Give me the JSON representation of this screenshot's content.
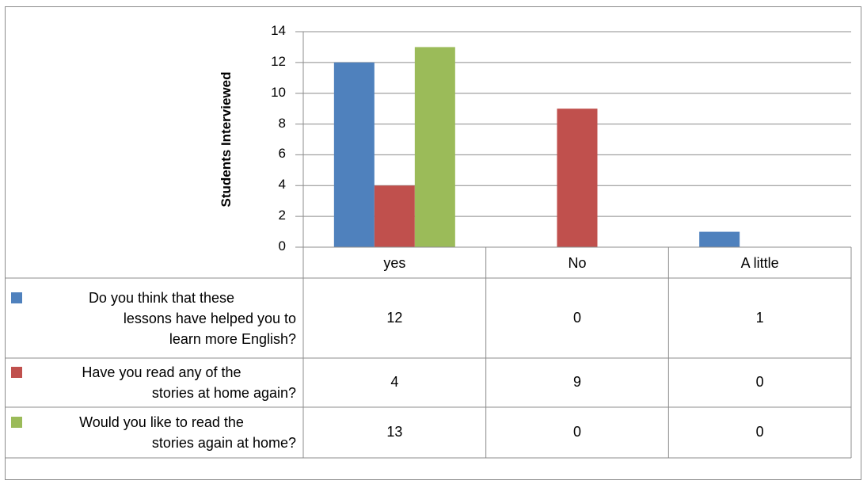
{
  "chart_data": {
    "type": "bar",
    "ylabel": "Students Interviewed",
    "ylim": [
      0,
      14
    ],
    "yticks": [
      "0",
      "2",
      "4",
      "6",
      "8",
      "10",
      "12",
      "14"
    ],
    "grid": true,
    "categories": [
      "yes",
      "No",
      "A little"
    ],
    "legend_placement": "data-table-left",
    "series": [
      {
        "name": "Do you think that these lessons have helped you to learn more English?",
        "name_lines": [
          "Do you think that these",
          "lessons have helped you to",
          "learn more English?"
        ],
        "color": "#4f81bd",
        "values": [
          12,
          0,
          1
        ],
        "value_labels": [
          "12",
          "0",
          "1"
        ]
      },
      {
        "name": "Have you read any of the stories at home again?",
        "name_lines": [
          "Have you read any of the",
          "stories at home again?"
        ],
        "color": "#c0504d",
        "values": [
          4,
          9,
          0
        ],
        "value_labels": [
          "4",
          "9",
          "0"
        ]
      },
      {
        "name": "Would you like to read the stories again at home?",
        "name_lines": [
          "Would you like to read the",
          "stories again at home?"
        ],
        "color": "#9bbb59",
        "values": [
          13,
          0,
          0
        ],
        "value_labels": [
          "13",
          "0",
          "0"
        ]
      }
    ]
  }
}
